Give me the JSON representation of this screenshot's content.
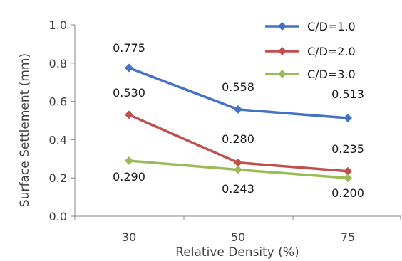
{
  "chart_data": {
    "type": "line",
    "title": "",
    "xlabel": "Relative Density (%)",
    "ylabel": "Surface Settlement (mm)",
    "categories": [
      "30",
      "50",
      "75"
    ],
    "ylim": [
      0.0,
      1.0
    ],
    "yticks": [
      "0.0",
      "0.2",
      "0.4",
      "0.6",
      "0.8",
      "1.0"
    ],
    "grid": false,
    "legend": "top-right",
    "series": [
      {
        "name": "C/D=1.0",
        "color": "#4472C4",
        "marker": "diamond",
        "values": [
          0.775,
          0.558,
          0.513
        ],
        "labels": [
          "0.775",
          "0.558",
          "0.513"
        ]
      },
      {
        "name": "C/D=2.0",
        "color": "#C0504D",
        "marker": "diamond",
        "values": [
          0.53,
          0.28,
          0.235
        ],
        "labels": [
          "0.530",
          "0.280",
          "0.235"
        ]
      },
      {
        "name": "C/D=3.0",
        "color": "#9BBB59",
        "marker": "diamond",
        "values": [
          0.29,
          0.243,
          0.2
        ],
        "labels": [
          "0.290",
          "0.243",
          "0.200"
        ]
      }
    ]
  }
}
